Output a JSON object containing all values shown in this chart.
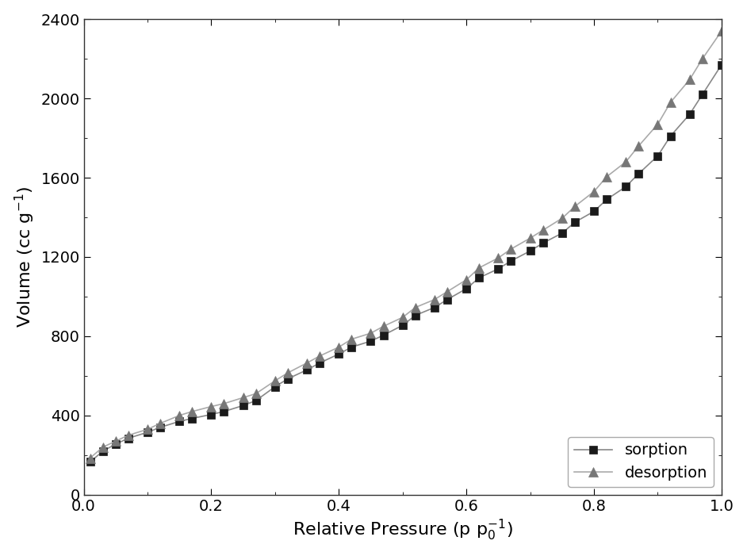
{
  "sorption_x": [
    0.01,
    0.03,
    0.05,
    0.07,
    0.1,
    0.12,
    0.15,
    0.17,
    0.2,
    0.22,
    0.25,
    0.27,
    0.3,
    0.32,
    0.35,
    0.37,
    0.4,
    0.42,
    0.45,
    0.47,
    0.5,
    0.52,
    0.55,
    0.57,
    0.6,
    0.62,
    0.65,
    0.67,
    0.7,
    0.72,
    0.75,
    0.77,
    0.8,
    0.82,
    0.85,
    0.87,
    0.9,
    0.92,
    0.95,
    0.97,
    1.0
  ],
  "sorption_y": [
    165,
    220,
    255,
    285,
    315,
    340,
    370,
    385,
    405,
    420,
    450,
    475,
    545,
    585,
    630,
    665,
    710,
    745,
    775,
    805,
    855,
    905,
    945,
    985,
    1040,
    1095,
    1140,
    1180,
    1230,
    1270,
    1320,
    1375,
    1430,
    1490,
    1555,
    1620,
    1710,
    1810,
    1920,
    2020,
    2170
  ],
  "desorption_x": [
    0.01,
    0.03,
    0.05,
    0.07,
    0.1,
    0.12,
    0.15,
    0.17,
    0.2,
    0.22,
    0.25,
    0.27,
    0.3,
    0.32,
    0.35,
    0.37,
    0.4,
    0.42,
    0.45,
    0.47,
    0.5,
    0.52,
    0.55,
    0.57,
    0.6,
    0.62,
    0.65,
    0.67,
    0.7,
    0.72,
    0.75,
    0.77,
    0.8,
    0.82,
    0.85,
    0.87,
    0.9,
    0.92,
    0.95,
    0.97,
    1.0
  ],
  "desorption_y": [
    185,
    240,
    270,
    300,
    330,
    360,
    400,
    420,
    445,
    460,
    490,
    510,
    575,
    615,
    665,
    700,
    745,
    785,
    815,
    850,
    895,
    945,
    985,
    1025,
    1085,
    1145,
    1195,
    1240,
    1295,
    1335,
    1395,
    1455,
    1530,
    1605,
    1680,
    1760,
    1870,
    1980,
    2095,
    2200,
    2340
  ],
  "sorption_color": "#1a1a1a",
  "desorption_color": "#777777",
  "line_color_sorption": "#888888",
  "line_color_desorption": "#aaaaaa",
  "ylabel": "Volume (cc g$^{-1}$)",
  "xlabel": "Relative Pressure (p p$_0^{-1}$)",
  "xlim": [
    0.0,
    1.0
  ],
  "ylim": [
    0,
    2400
  ],
  "yticks": [
    0,
    400,
    800,
    1200,
    1600,
    2000,
    2400
  ],
  "xticks": [
    0.0,
    0.2,
    0.4,
    0.6,
    0.8,
    1.0
  ],
  "legend_loc": "lower right",
  "font_size": 16
}
